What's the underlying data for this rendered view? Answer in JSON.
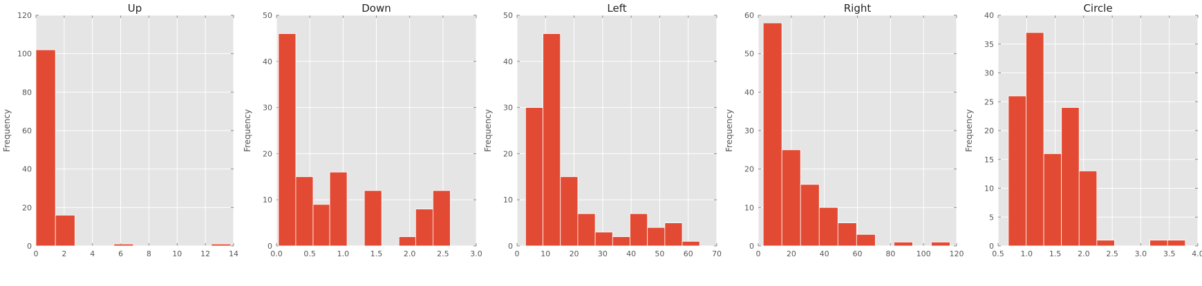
{
  "chart_data": [
    {
      "type": "bar",
      "title": "Up",
      "ylabel": "Frequency",
      "xlim": [
        0,
        14
      ],
      "ylim": [
        0,
        120
      ],
      "xticks": [
        "0",
        "2",
        "4",
        "6",
        "8",
        "10",
        "12",
        "14"
      ],
      "yticks": [
        "0",
        "20",
        "40",
        "60",
        "80",
        "100",
        "120"
      ],
      "bins": [
        {
          "x0": 0.0,
          "x1": 1.38,
          "value": 102
        },
        {
          "x0": 1.38,
          "x1": 2.76,
          "value": 16
        },
        {
          "x0": 2.76,
          "x1": 4.14,
          "value": 0
        },
        {
          "x0": 4.14,
          "x1": 5.52,
          "value": 0
        },
        {
          "x0": 5.52,
          "x1": 6.9,
          "value": 1
        },
        {
          "x0": 6.9,
          "x1": 8.28,
          "value": 0
        },
        {
          "x0": 8.28,
          "x1": 9.66,
          "value": 0
        },
        {
          "x0": 9.66,
          "x1": 11.04,
          "value": 0
        },
        {
          "x0": 11.04,
          "x1": 12.42,
          "value": 0
        },
        {
          "x0": 12.42,
          "x1": 13.8,
          "value": 1
        }
      ]
    },
    {
      "type": "bar",
      "title": "Down",
      "ylabel": "Frequency",
      "xlim": [
        0.0,
        3.0
      ],
      "ylim": [
        0,
        50
      ],
      "xticks": [
        "0.0",
        "0.5",
        "1.0",
        "1.5",
        "2.0",
        "2.5",
        "3.0"
      ],
      "yticks": [
        "0",
        "10",
        "20",
        "30",
        "40",
        "50"
      ],
      "bins": [
        {
          "x0": 0.03,
          "x1": 0.29,
          "value": 46
        },
        {
          "x0": 0.29,
          "x1": 0.55,
          "value": 15
        },
        {
          "x0": 0.55,
          "x1": 0.8,
          "value": 9
        },
        {
          "x0": 0.8,
          "x1": 1.06,
          "value": 16
        },
        {
          "x0": 1.06,
          "x1": 1.32,
          "value": 0
        },
        {
          "x0": 1.32,
          "x1": 1.58,
          "value": 12
        },
        {
          "x0": 1.58,
          "x1": 1.84,
          "value": 0
        },
        {
          "x0": 1.84,
          "x1": 2.09,
          "value": 2
        },
        {
          "x0": 2.09,
          "x1": 2.35,
          "value": 8
        },
        {
          "x0": 2.35,
          "x1": 2.61,
          "value": 12
        }
      ]
    },
    {
      "type": "bar",
      "title": "Left",
      "ylabel": "Frequency",
      "xlim": [
        0,
        70
      ],
      "ylim": [
        0,
        50
      ],
      "xticks": [
        "0",
        "10",
        "20",
        "30",
        "40",
        "50",
        "60",
        "70"
      ],
      "yticks": [
        "0",
        "10",
        "20",
        "30",
        "40",
        "50"
      ],
      "bins": [
        {
          "x0": 3.0,
          "x1": 9.1,
          "value": 30
        },
        {
          "x0": 9.1,
          "x1": 15.2,
          "value": 46
        },
        {
          "x0": 15.2,
          "x1": 21.3,
          "value": 15
        },
        {
          "x0": 21.3,
          "x1": 27.4,
          "value": 7
        },
        {
          "x0": 27.4,
          "x1": 33.5,
          "value": 3
        },
        {
          "x0": 33.5,
          "x1": 39.6,
          "value": 2
        },
        {
          "x0": 39.6,
          "x1": 45.7,
          "value": 7
        },
        {
          "x0": 45.7,
          "x1": 51.8,
          "value": 4
        },
        {
          "x0": 51.8,
          "x1": 57.9,
          "value": 5
        },
        {
          "x0": 57.9,
          "x1": 64.0,
          "value": 1
        }
      ]
    },
    {
      "type": "bar",
      "title": "Right",
      "ylabel": "Frequency",
      "xlim": [
        0,
        120
      ],
      "ylim": [
        0,
        60
      ],
      "xticks": [
        "0",
        "20",
        "40",
        "60",
        "80",
        "100",
        "120"
      ],
      "yticks": [
        "0",
        "10",
        "20",
        "30",
        "40",
        "50",
        "60"
      ],
      "bins": [
        {
          "x0": 3.0,
          "x1": 14.3,
          "value": 58
        },
        {
          "x0": 14.3,
          "x1": 25.6,
          "value": 25
        },
        {
          "x0": 25.6,
          "x1": 36.9,
          "value": 16
        },
        {
          "x0": 36.9,
          "x1": 48.2,
          "value": 10
        },
        {
          "x0": 48.2,
          "x1": 59.5,
          "value": 6
        },
        {
          "x0": 59.5,
          "x1": 70.8,
          "value": 3
        },
        {
          "x0": 70.8,
          "x1": 82.1,
          "value": 0
        },
        {
          "x0": 82.1,
          "x1": 93.4,
          "value": 1
        },
        {
          "x0": 93.4,
          "x1": 104.7,
          "value": 0
        },
        {
          "x0": 104.7,
          "x1": 116.0,
          "value": 1
        }
      ]
    },
    {
      "type": "bar",
      "title": "Circle",
      "ylabel": "Frequency",
      "xlim": [
        0.5,
        4.0
      ],
      "ylim": [
        0,
        40
      ],
      "xticks": [
        "0.5",
        "1.0",
        "1.5",
        "2.0",
        "2.5",
        "3.0",
        "3.5",
        "4.0"
      ],
      "yticks": [
        "0",
        "5",
        "10",
        "15",
        "20",
        "25",
        "30",
        "35",
        "40"
      ],
      "bins": [
        {
          "x0": 0.68,
          "x1": 0.99,
          "value": 26
        },
        {
          "x0": 0.99,
          "x1": 1.3,
          "value": 37
        },
        {
          "x0": 1.3,
          "x1": 1.61,
          "value": 16
        },
        {
          "x0": 1.61,
          "x1": 1.92,
          "value": 24
        },
        {
          "x0": 1.92,
          "x1": 2.23,
          "value": 13
        },
        {
          "x0": 2.23,
          "x1": 2.54,
          "value": 1
        },
        {
          "x0": 2.54,
          "x1": 2.85,
          "value": 0
        },
        {
          "x0": 2.85,
          "x1": 3.16,
          "value": 0
        },
        {
          "x0": 3.16,
          "x1": 3.47,
          "value": 1
        },
        {
          "x0": 3.47,
          "x1": 3.78,
          "value": 1
        }
      ]
    }
  ],
  "colors": {
    "bar": "#e24a33",
    "plot_background": "#e5e5e5",
    "grid": "#ffffff"
  }
}
